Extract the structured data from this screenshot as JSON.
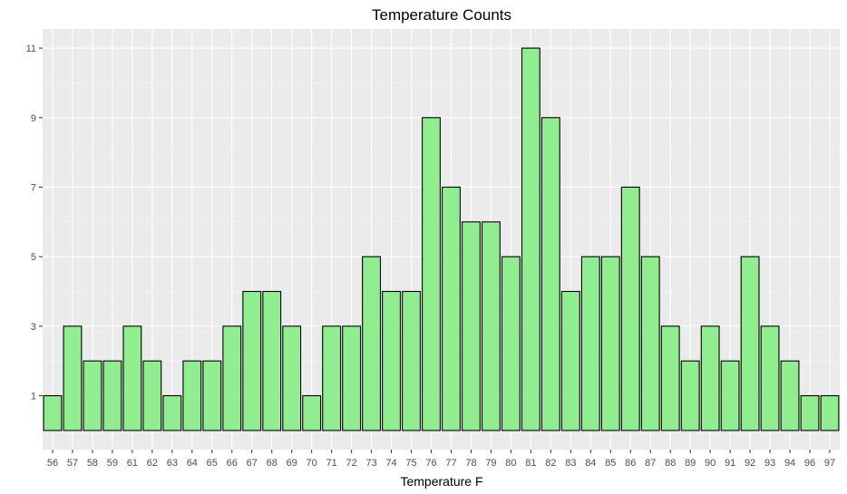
{
  "chart_data": {
    "type": "bar",
    "title": "Temperature Counts",
    "xlabel": "Temperature F",
    "ylabel": "",
    "categories": [
      "56",
      "57",
      "58",
      "59",
      "61",
      "62",
      "63",
      "64",
      "65",
      "66",
      "67",
      "68",
      "69",
      "70",
      "71",
      "72",
      "73",
      "74",
      "75",
      "76",
      "77",
      "78",
      "79",
      "80",
      "81",
      "82",
      "83",
      "84",
      "85",
      "86",
      "87",
      "88",
      "89",
      "90",
      "91",
      "92",
      "93",
      "94",
      "96",
      "97"
    ],
    "values": [
      1,
      3,
      2,
      2,
      3,
      2,
      1,
      2,
      2,
      3,
      4,
      4,
      3,
      1,
      3,
      3,
      5,
      4,
      4,
      9,
      7,
      6,
      6,
      5,
      11,
      9,
      4,
      5,
      5,
      7,
      5,
      3,
      2,
      3,
      2,
      5,
      3,
      2,
      1,
      1
    ],
    "yticks": [
      1,
      3,
      5,
      7,
      9,
      11
    ],
    "ylim": [
      -0.55,
      11.55
    ],
    "grid": true,
    "legend": "none",
    "colors": {
      "panel": "#ebebeb",
      "grid_major": "#ffffff",
      "grid_minor": "#f5f5f5",
      "bar_fill": "#90ee90",
      "bar_stroke": "#000000",
      "tick_text": "#4d4d4d",
      "tick_mark": "#333333"
    }
  }
}
